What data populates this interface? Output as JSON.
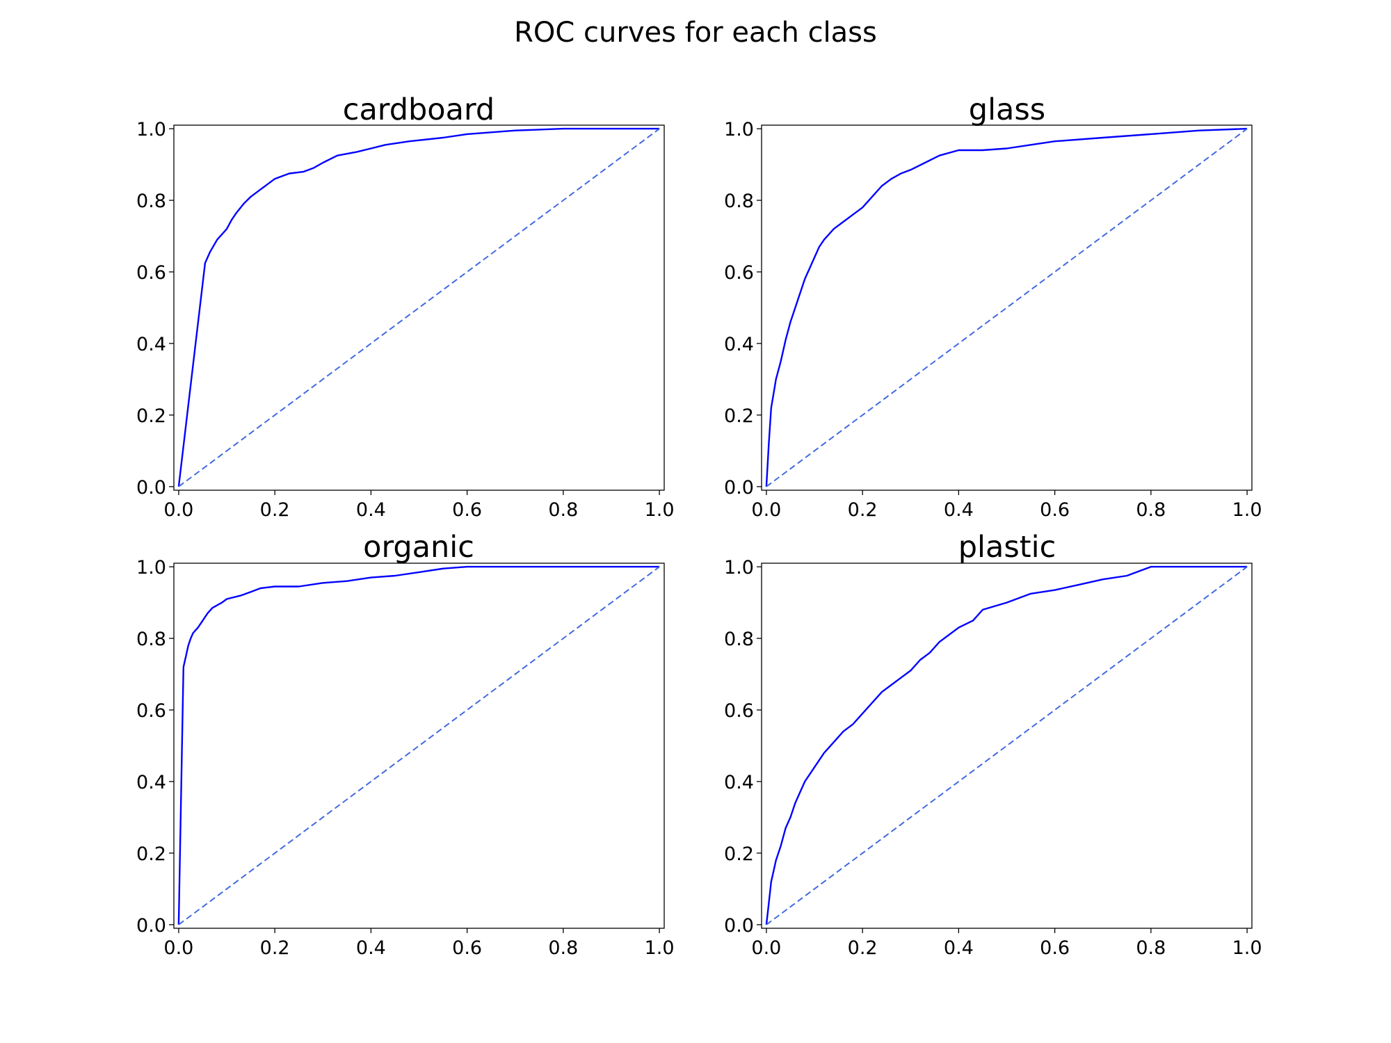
{
  "figure": {
    "title": "ROC curves for each class"
  },
  "colors": {
    "roc": "#0000ff",
    "chance": "#4169e1"
  },
  "chart_data": [
    {
      "type": "line",
      "title": "cardboard",
      "xlabel": "",
      "ylabel": "",
      "xlim": [
        -0.01,
        1.01
      ],
      "ylim": [
        -0.01,
        1.01
      ],
      "xticks": [
        "0.0",
        "0.2",
        "0.4",
        "0.6",
        "0.8",
        "1.0"
      ],
      "yticks": [
        "0.0",
        "0.2",
        "0.4",
        "0.6",
        "0.8",
        "1.0"
      ],
      "grid": false,
      "series": [
        {
          "style": "solid",
          "x": [
            0.0,
            0.055,
            0.065,
            0.08,
            0.1,
            0.11,
            0.12,
            0.135,
            0.15,
            0.17,
            0.2,
            0.23,
            0.26,
            0.28,
            0.3,
            0.33,
            0.37,
            0.4,
            0.43,
            0.48,
            0.55,
            0.6,
            0.65,
            0.7,
            0.8,
            1.0
          ],
          "y": [
            0.0,
            0.625,
            0.655,
            0.69,
            0.72,
            0.745,
            0.765,
            0.79,
            0.81,
            0.83,
            0.86,
            0.875,
            0.88,
            0.89,
            0.905,
            0.925,
            0.935,
            0.945,
            0.955,
            0.965,
            0.975,
            0.985,
            0.99,
            0.995,
            1.0,
            1.0
          ]
        },
        {
          "style": "dashed",
          "x": [
            0,
            1
          ],
          "y": [
            0,
            1
          ]
        }
      ]
    },
    {
      "type": "line",
      "title": "glass",
      "xlabel": "",
      "ylabel": "",
      "xlim": [
        -0.01,
        1.01
      ],
      "ylim": [
        -0.01,
        1.01
      ],
      "xticks": [
        "0.0",
        "0.2",
        "0.4",
        "0.6",
        "0.8",
        "1.0"
      ],
      "yticks": [
        "0.0",
        "0.2",
        "0.4",
        "0.6",
        "0.8",
        "1.0"
      ],
      "grid": false,
      "series": [
        {
          "style": "solid",
          "x": [
            0.0,
            0.005,
            0.01,
            0.015,
            0.02,
            0.03,
            0.04,
            0.05,
            0.06,
            0.07,
            0.08,
            0.09,
            0.1,
            0.11,
            0.12,
            0.14,
            0.16,
            0.18,
            0.2,
            0.22,
            0.24,
            0.26,
            0.28,
            0.3,
            0.33,
            0.36,
            0.4,
            0.45,
            0.5,
            0.55,
            0.6,
            0.7,
            0.8,
            0.9,
            1.0
          ],
          "y": [
            0.0,
            0.12,
            0.22,
            0.26,
            0.3,
            0.35,
            0.41,
            0.46,
            0.5,
            0.54,
            0.58,
            0.61,
            0.64,
            0.67,
            0.69,
            0.72,
            0.74,
            0.76,
            0.78,
            0.81,
            0.84,
            0.86,
            0.875,
            0.885,
            0.905,
            0.925,
            0.94,
            0.94,
            0.945,
            0.955,
            0.965,
            0.975,
            0.985,
            0.995,
            1.0
          ]
        },
        {
          "style": "dashed",
          "x": [
            0,
            1
          ],
          "y": [
            0,
            1
          ]
        }
      ]
    },
    {
      "type": "line",
      "title": "organic",
      "xlabel": "",
      "ylabel": "",
      "xlim": [
        -0.01,
        1.01
      ],
      "ylim": [
        -0.01,
        1.01
      ],
      "xticks": [
        "0.0",
        "0.2",
        "0.4",
        "0.6",
        "0.8",
        "1.0"
      ],
      "yticks": [
        "0.0",
        "0.2",
        "0.4",
        "0.6",
        "0.8",
        "1.0"
      ],
      "grid": false,
      "series": [
        {
          "style": "solid",
          "x": [
            0.0,
            0.01,
            0.015,
            0.02,
            0.025,
            0.03,
            0.04,
            0.05,
            0.06,
            0.07,
            0.09,
            0.1,
            0.13,
            0.15,
            0.17,
            0.2,
            0.25,
            0.3,
            0.35,
            0.4,
            0.45,
            0.5,
            0.55,
            0.6,
            0.7,
            1.0
          ],
          "y": [
            0.0,
            0.72,
            0.75,
            0.78,
            0.8,
            0.815,
            0.83,
            0.85,
            0.87,
            0.885,
            0.9,
            0.91,
            0.92,
            0.93,
            0.94,
            0.945,
            0.945,
            0.955,
            0.96,
            0.97,
            0.975,
            0.985,
            0.995,
            1.0,
            1.0,
            1.0
          ]
        },
        {
          "style": "dashed",
          "x": [
            0,
            1
          ],
          "y": [
            0,
            1
          ]
        }
      ]
    },
    {
      "type": "line",
      "title": "plastic",
      "xlabel": "",
      "ylabel": "",
      "xlim": [
        -0.01,
        1.01
      ],
      "ylim": [
        -0.01,
        1.01
      ],
      "xticks": [
        "0.0",
        "0.2",
        "0.4",
        "0.6",
        "0.8",
        "1.0"
      ],
      "yticks": [
        "0.0",
        "0.2",
        "0.4",
        "0.6",
        "0.8",
        "1.0"
      ],
      "grid": false,
      "series": [
        {
          "style": "solid",
          "x": [
            0.0,
            0.005,
            0.01,
            0.015,
            0.02,
            0.03,
            0.04,
            0.05,
            0.06,
            0.07,
            0.08,
            0.1,
            0.12,
            0.14,
            0.16,
            0.18,
            0.2,
            0.22,
            0.24,
            0.26,
            0.28,
            0.3,
            0.32,
            0.34,
            0.36,
            0.38,
            0.4,
            0.43,
            0.45,
            0.5,
            0.52,
            0.55,
            0.6,
            0.65,
            0.7,
            0.75,
            0.78,
            0.8,
            1.0
          ],
          "y": [
            0.0,
            0.06,
            0.12,
            0.15,
            0.18,
            0.22,
            0.27,
            0.3,
            0.34,
            0.37,
            0.4,
            0.44,
            0.48,
            0.51,
            0.54,
            0.56,
            0.59,
            0.62,
            0.65,
            0.67,
            0.69,
            0.71,
            0.74,
            0.76,
            0.79,
            0.81,
            0.83,
            0.85,
            0.88,
            0.9,
            0.91,
            0.925,
            0.935,
            0.95,
            0.965,
            0.975,
            0.99,
            1.0,
            1.0
          ]
        },
        {
          "style": "dashed",
          "x": [
            0,
            1
          ],
          "y": [
            0,
            1
          ]
        }
      ]
    }
  ]
}
